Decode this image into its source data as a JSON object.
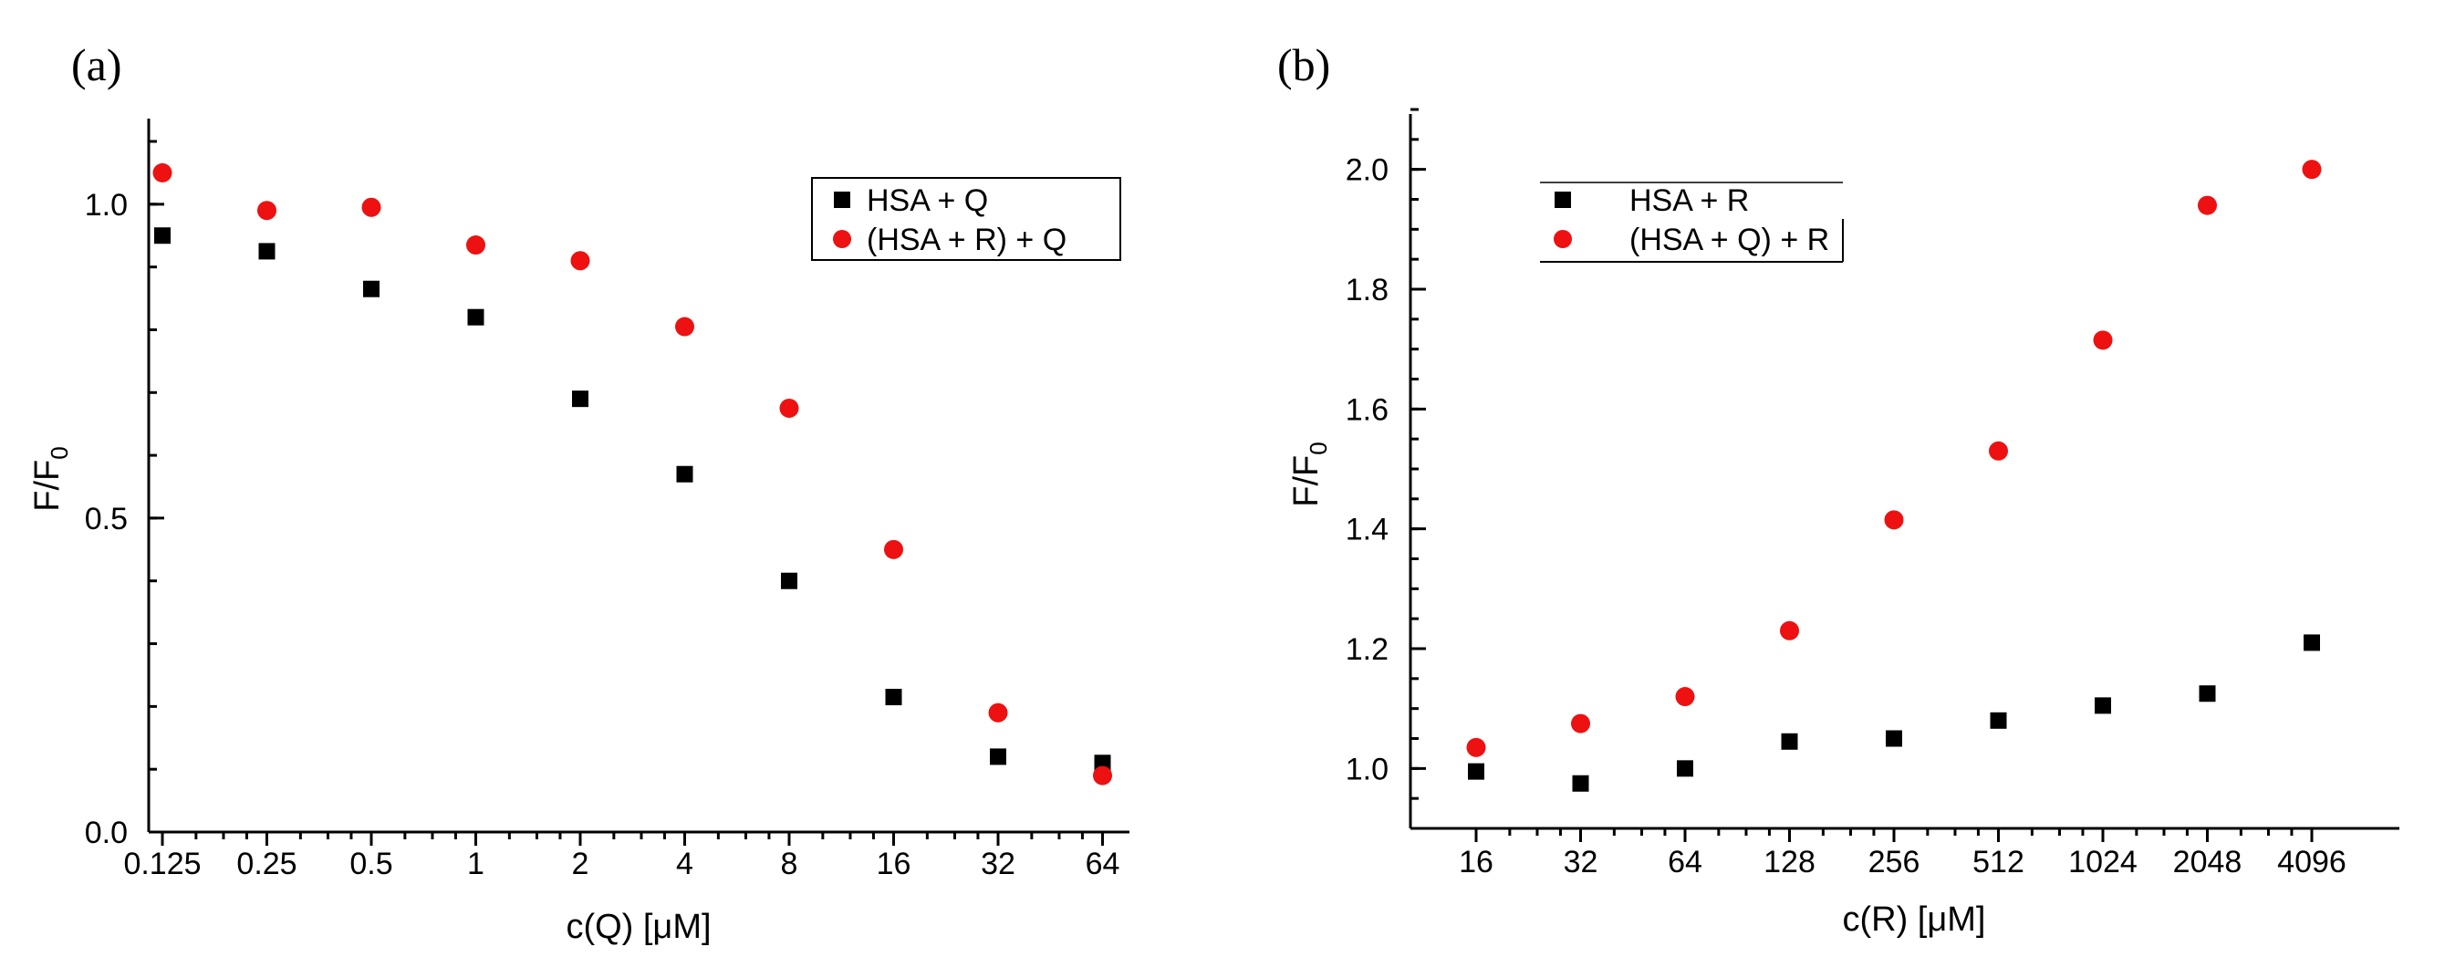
{
  "chart_data": [
    {
      "type": "scatter",
      "panel_label": "(a)",
      "xlabel": "c(Q) [μM]",
      "ylabel_main": "F/F",
      "ylabel_sub": "0",
      "x_scale": "log2",
      "x_tick_labels": [
        "0.125",
        "0.25",
        "0.5",
        "1",
        "2",
        "4",
        "8",
        "16",
        "32",
        "64"
      ],
      "y_ticks": [
        "0.0",
        "0.5",
        "1.0"
      ],
      "ylim": [
        0,
        1.1
      ],
      "legend_position": "top-right",
      "colors": {
        "series1": "#000000",
        "series2": "#ee1111"
      },
      "series": [
        {
          "name": "HSA + Q",
          "marker": "square",
          "x": [
            0.125,
            0.25,
            0.5,
            1,
            2,
            4,
            8,
            16,
            32,
            64
          ],
          "values": [
            0.95,
            0.925,
            0.865,
            0.82,
            0.69,
            0.57,
            0.4,
            0.215,
            0.12,
            0.11
          ]
        },
        {
          "name": "(HSA + R) + Q",
          "marker": "circle",
          "x": [
            0.125,
            0.25,
            0.5,
            1,
            2,
            4,
            8,
            16,
            32,
            64
          ],
          "values": [
            1.05,
            0.99,
            0.995,
            0.935,
            0.91,
            0.805,
            0.675,
            0.45,
            0.19,
            0.09
          ]
        }
      ]
    },
    {
      "type": "scatter",
      "panel_label": "(b)",
      "xlabel": "c(R) [μM]",
      "ylabel_main": "F/F",
      "ylabel_sub": "0",
      "x_scale": "log2",
      "x_tick_labels": [
        "16",
        "32",
        "64",
        "128",
        "256",
        "512",
        "1024",
        "2048",
        "4096"
      ],
      "y_ticks": [
        "1.0",
        "1.2",
        "1.4",
        "1.6",
        "1.8",
        "2.0"
      ],
      "ylim": [
        0.9,
        2.1
      ],
      "legend_position": "top-left",
      "colors": {
        "series1": "#000000",
        "series2": "#ee1111"
      },
      "series": [
        {
          "name": "HSA + R",
          "marker": "square",
          "x": [
            16,
            32,
            64,
            128,
            256,
            512,
            1024,
            2048,
            4096
          ],
          "values": [
            0.995,
            0.975,
            1.0,
            1.045,
            1.05,
            1.08,
            1.105,
            1.125,
            1.21
          ]
        },
        {
          "name": "(HSA + Q) + R",
          "marker": "circle",
          "x": [
            16,
            32,
            64,
            128,
            256,
            512,
            1024,
            2048,
            4096
          ],
          "values": [
            1.035,
            1.075,
            1.12,
            1.23,
            1.415,
            1.53,
            1.715,
            1.94,
            2.0
          ]
        }
      ]
    }
  ]
}
